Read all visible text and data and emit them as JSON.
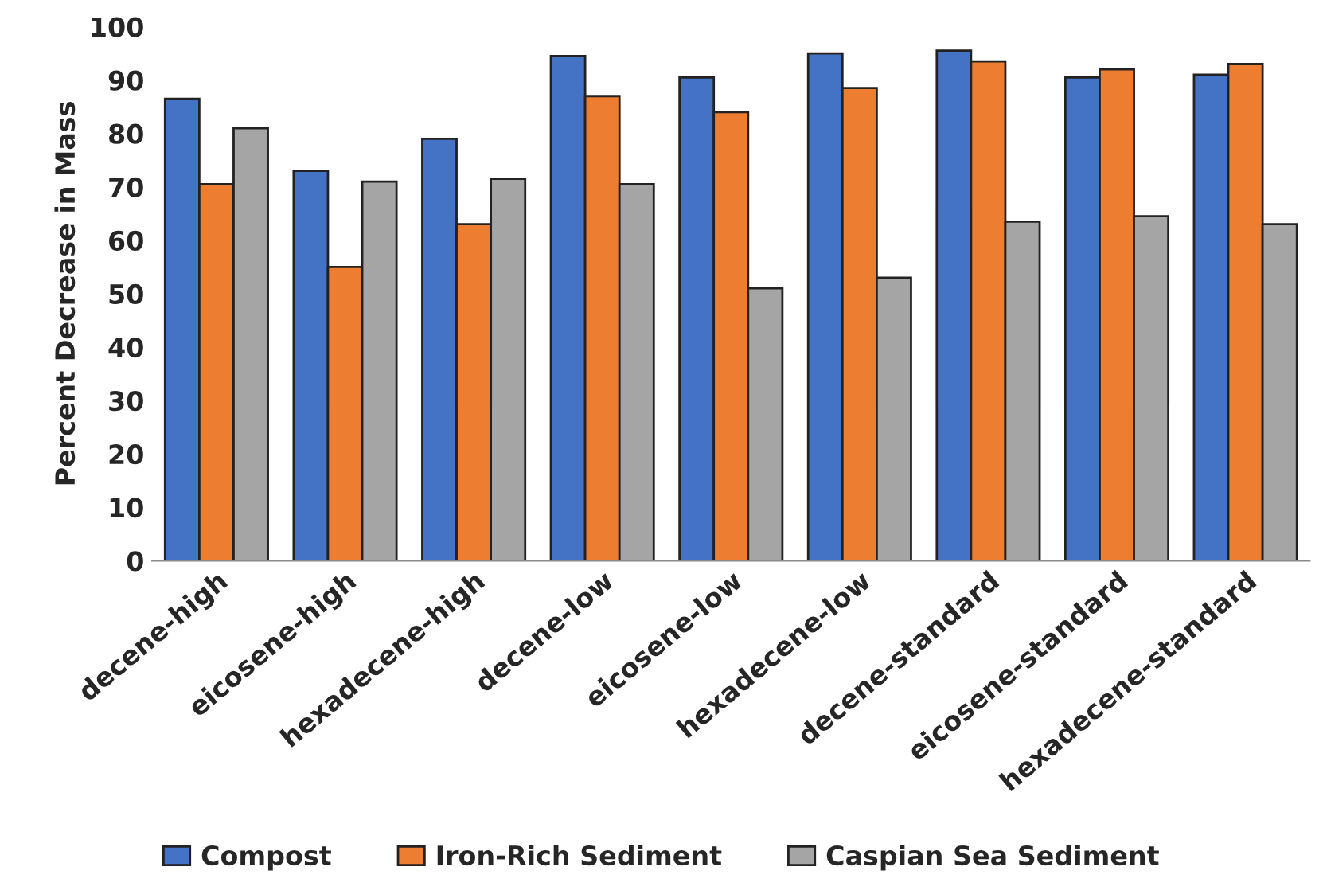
{
  "chart_data": {
    "type": "bar",
    "ylabel": "Percent Decrease in Mass",
    "categories": [
      "decene-high",
      "eicosene-high",
      "hexadecene-high",
      "decene-low",
      "eicosene-low",
      "hexadecene-low",
      "decene-standard",
      "eicosene-standard",
      "hexadecene-standard"
    ],
    "series": [
      {
        "name": "Compost",
        "color": "#4472c4",
        "values": [
          86.5,
          73,
          79,
          94.5,
          90.5,
          95,
          95.5,
          90.5,
          91
        ]
      },
      {
        "name": "Iron-Rich Sediment",
        "color": "#ed7d31",
        "values": [
          70.5,
          55,
          63,
          87,
          84,
          88.5,
          93.5,
          92,
          93
        ]
      },
      {
        "name": "Caspian Sea Sediment",
        "color": "#a5a5a5",
        "values": [
          81,
          71,
          71.5,
          70.5,
          51,
          53,
          63.5,
          64.5,
          63
        ]
      }
    ],
    "ylim": [
      0,
      100
    ],
    "yticks": [
      0,
      10,
      20,
      30,
      40,
      50,
      60,
      70,
      80,
      90,
      100
    ],
    "grid": false,
    "legend": "bottom"
  }
}
